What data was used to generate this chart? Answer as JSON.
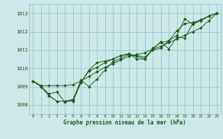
{
  "xlabel": "Graphe pression niveau de la mer (hPa)",
  "background_color": "#cce8e8",
  "grid_color": "#99cccc",
  "line_color": "#1a5c1a",
  "x_ticks": [
    0,
    1,
    2,
    3,
    4,
    5,
    6,
    7,
    8,
    9,
    10,
    11,
    12,
    13,
    14,
    15,
    16,
    17,
    18,
    19,
    20,
    21,
    22,
    23
  ],
  "ylim": [
    1007.5,
    1013.5
  ],
  "y_ticks": [
    1008,
    1009,
    1010,
    1011,
    1012,
    1013
  ],
  "series": [
    [
      1009.3,
      1009.0,
      1008.5,
      1008.2,
      1008.2,
      1008.2,
      1009.2,
      1009.9,
      1010.3,
      1010.4,
      1010.5,
      1010.7,
      1010.75,
      1010.7,
      1010.6,
      1011.0,
      1011.1,
      1011.5,
      1011.8,
      1012.7,
      1012.4,
      1012.6,
      1012.85,
      1013.0
    ],
    [
      1009.3,
      1009.0,
      1008.6,
      1008.7,
      1008.15,
      1008.25,
      1009.35,
      1009.0,
      1009.4,
      1009.9,
      1010.35,
      1010.55,
      1010.75,
      1010.65,
      1010.5,
      1011.05,
      1011.45,
      1011.05,
      1011.7,
      1011.65,
      1012.45,
      1012.6,
      1012.85,
      1013.0
    ],
    [
      1009.3,
      1009.0,
      1008.5,
      1008.2,
      1008.2,
      1008.3,
      1009.25,
      1009.85,
      1010.05,
      1010.3,
      1010.5,
      1010.7,
      1010.8,
      1010.5,
      1010.5,
      1011.1,
      1011.4,
      1011.5,
      1012.05,
      1012.45,
      1012.5,
      1012.65,
      1012.85,
      1013.0
    ],
    [
      1009.3,
      1009.05,
      1009.05,
      1009.05,
      1009.05,
      1009.1,
      1009.3,
      1009.55,
      1009.8,
      1010.05,
      1010.25,
      1010.45,
      1010.65,
      1010.75,
      1010.85,
      1011.05,
      1011.2,
      1011.4,
      1011.6,
      1011.8,
      1012.0,
      1012.2,
      1012.6,
      1013.0
    ]
  ]
}
